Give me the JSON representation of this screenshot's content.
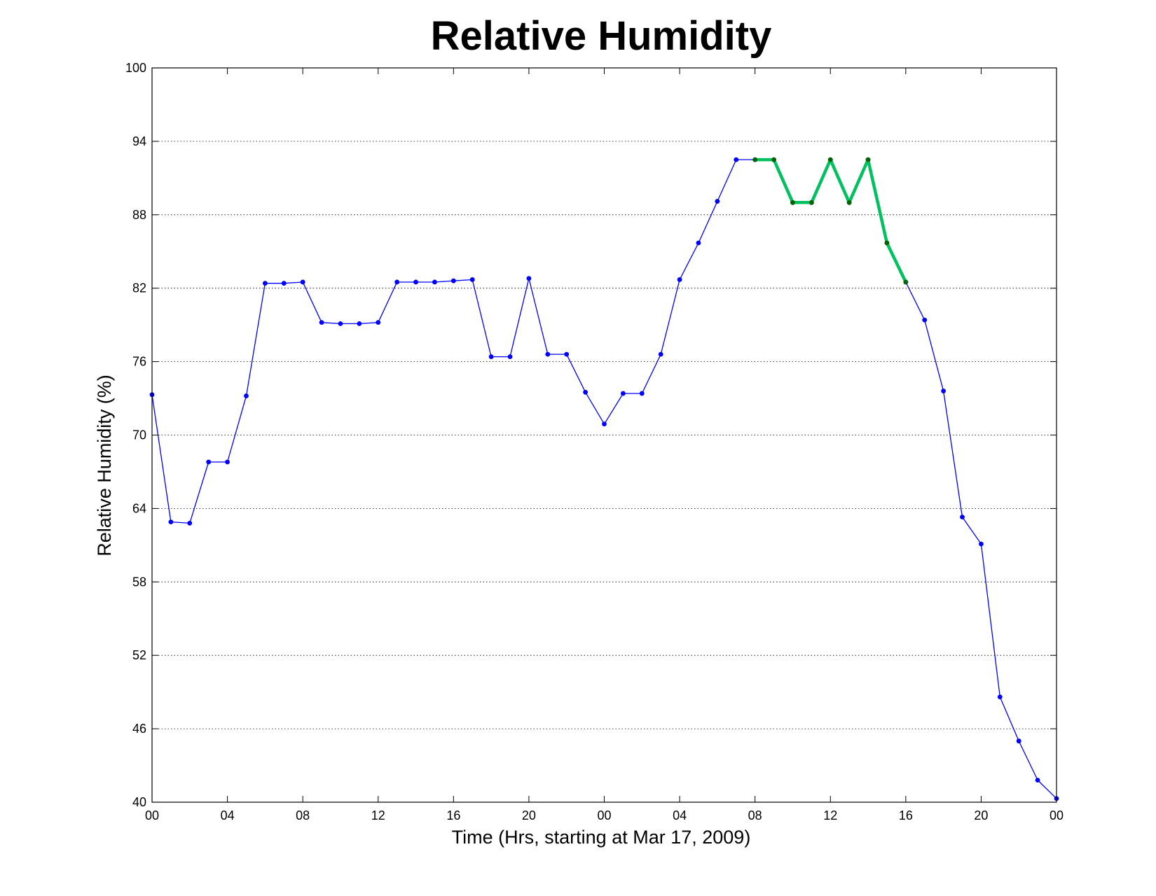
{
  "chart_data": {
    "type": "line",
    "title": "Relative Humidity",
    "xlabel": "Time (Hrs, starting at Mar 17, 2009)",
    "ylabel": "Relative Humidity (%)",
    "xlim": [
      0,
      48
    ],
    "ylim": [
      40,
      100
    ],
    "x_ticks": [
      0,
      4,
      8,
      12,
      16,
      20,
      24,
      28,
      32,
      36,
      40,
      44,
      48
    ],
    "x_tick_labels": [
      "00",
      "04",
      "08",
      "12",
      "16",
      "20",
      "00",
      "04",
      "08",
      "12",
      "16",
      "20",
      "00"
    ],
    "y_ticks": [
      40,
      46,
      52,
      58,
      64,
      70,
      76,
      82,
      88,
      94,
      100
    ],
    "y_tick_labels": [
      "40",
      "46",
      "52",
      "58",
      "64",
      "70",
      "76",
      "82",
      "88",
      "94",
      "100"
    ],
    "grid": true,
    "series": [
      {
        "color": "#0000ff",
        "line_width": 1.3,
        "marker_color": "#0000ff",
        "x": [
          0,
          1,
          2,
          3,
          4,
          5,
          6,
          7,
          8,
          9,
          10,
          11,
          12,
          13,
          14,
          15,
          16,
          17,
          18,
          19,
          20,
          21,
          22,
          23,
          24,
          25,
          26,
          27,
          28,
          29,
          30,
          31,
          32,
          33,
          34,
          35,
          36,
          37,
          38,
          39,
          40,
          41,
          42,
          43,
          44,
          45,
          46,
          47,
          48
        ],
        "y": [
          73.3,
          62.9,
          62.8,
          67.8,
          67.8,
          73.2,
          82.4,
          82.4,
          82.5,
          79.2,
          79.1,
          79.1,
          79.2,
          82.5,
          82.5,
          82.5,
          82.6,
          82.7,
          76.4,
          76.4,
          82.8,
          76.6,
          76.6,
          73.5,
          70.9,
          73.4,
          73.4,
          76.6,
          82.7,
          85.7,
          89.1,
          92.5,
          92.5,
          92.5,
          89.0,
          89.0,
          92.5,
          89.0,
          92.5,
          85.7,
          82.5,
          79.4,
          73.6,
          63.3,
          61.1,
          48.6,
          45.0,
          41.8,
          40.3
        ]
      },
      {
        "color": "#00c060",
        "line_width": 4.5,
        "marker_color": "#006400",
        "x": [
          32,
          33,
          34,
          35,
          36,
          37,
          38,
          39,
          40
        ],
        "y": [
          92.5,
          92.5,
          89.0,
          89.0,
          92.5,
          89.0,
          92.5,
          85.7,
          82.5
        ]
      }
    ]
  }
}
